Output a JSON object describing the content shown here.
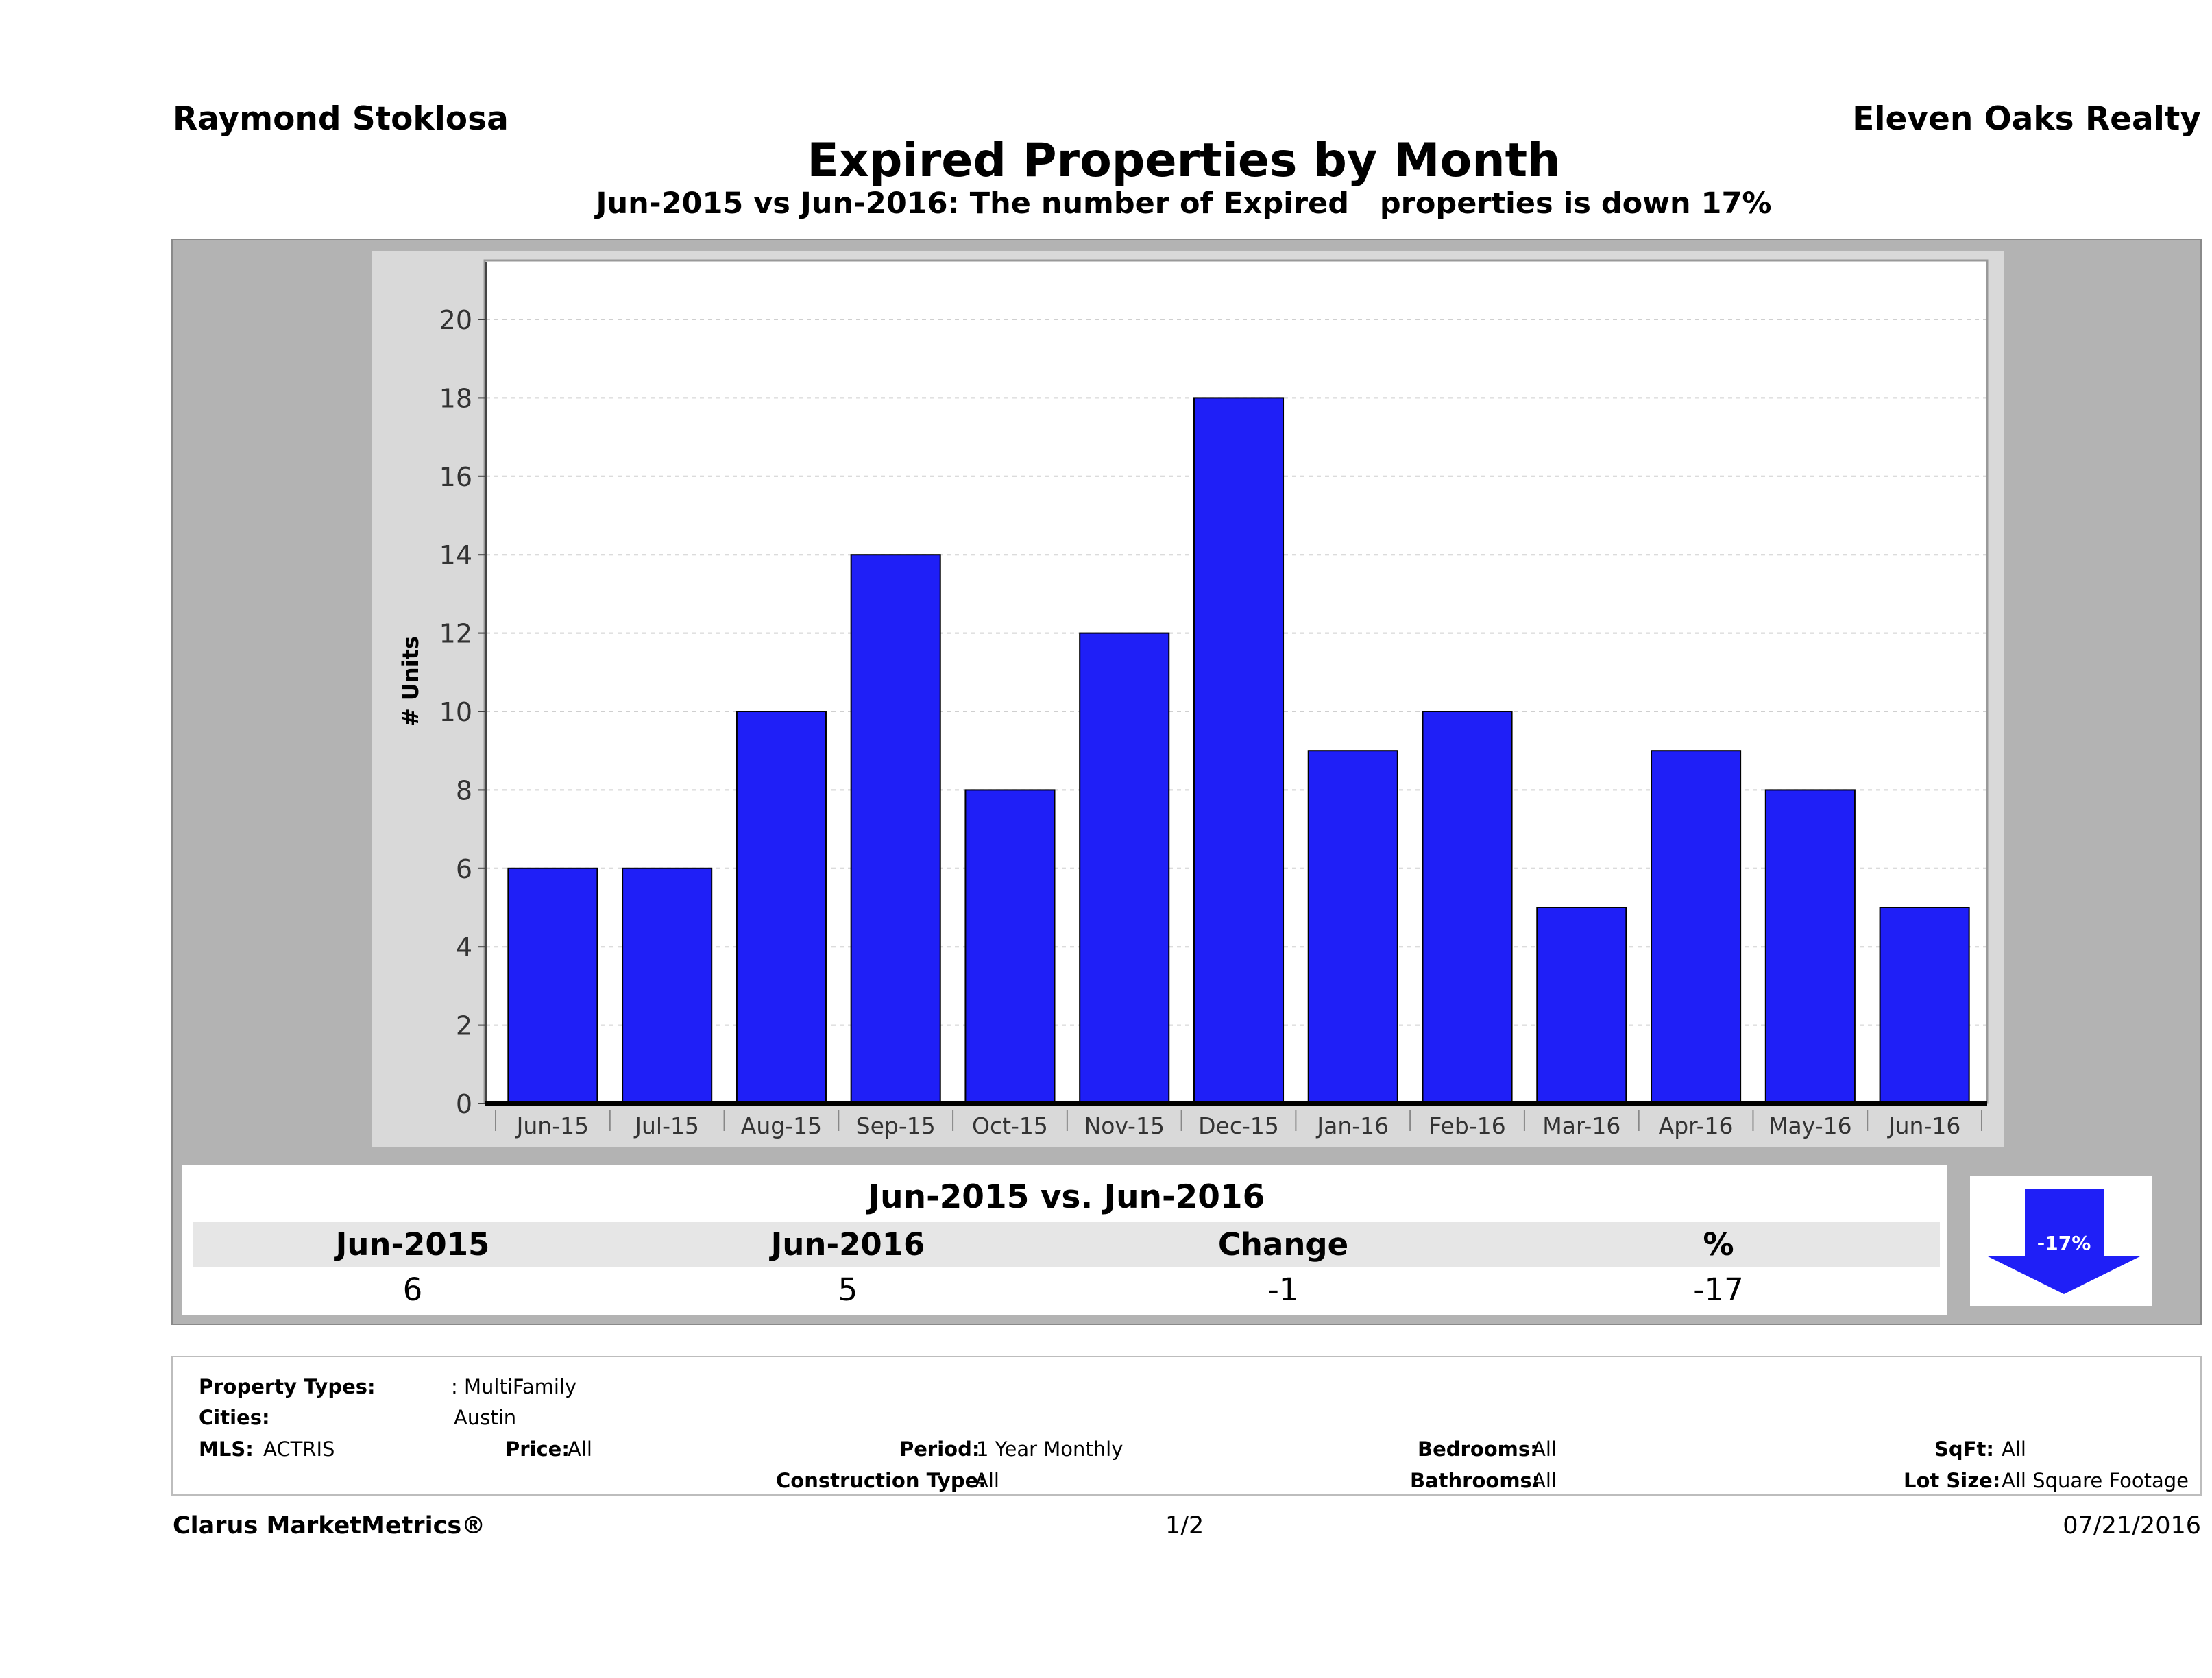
{
  "header": {
    "agent": "Raymond Stoklosa",
    "brokerage": "Eleven Oaks Realty",
    "title": "Expired Properties by Month",
    "subtitle": "Jun-2015 vs Jun-2016: The number of Expired   properties is down 17%"
  },
  "chart_data": {
    "type": "bar",
    "categories": [
      "Jun-15",
      "Jul-15",
      "Aug-15",
      "Sep-15",
      "Oct-15",
      "Nov-15",
      "Dec-15",
      "Jan-16",
      "Feb-16",
      "Mar-16",
      "Apr-16",
      "May-16",
      "Jun-16"
    ],
    "values": [
      6,
      6,
      10,
      14,
      8,
      12,
      18,
      9,
      10,
      5,
      9,
      8,
      5
    ],
    "ylabel": "# Units",
    "xlabel": "",
    "ylim": [
      0,
      21.5
    ],
    "yticks": [
      0,
      2,
      4,
      6,
      8,
      10,
      12,
      14,
      16,
      18,
      20
    ],
    "bar_color": "#1f1ff7",
    "grid": true,
    "legend": "none"
  },
  "summary": {
    "title": "Jun-2015 vs. Jun-2016",
    "headers": [
      "Jun-2015",
      "Jun-2016",
      "Change",
      "%"
    ],
    "values": [
      "6",
      "5",
      "-1",
      "-17"
    ],
    "badge": "-17%",
    "badge_color": "#1f1ff7"
  },
  "filters": {
    "property_types_label": "Property Types:",
    "property_types_value": ": MultiFamily",
    "cities_label": "Cities:",
    "cities_value": "Austin",
    "mls_label": "MLS:",
    "mls_value": "ACTRIS",
    "price_label": "Price:",
    "price_value": "All",
    "period_label": "Period:",
    "period_value": "1 Year Monthly",
    "construction_label": "Construction Type:",
    "construction_value": "All",
    "bedrooms_label": "Bedrooms:",
    "bedrooms_value": "All",
    "bathrooms_label": "Bathrooms:",
    "bathrooms_value": "All",
    "sqft_label": "SqFt:",
    "sqft_value": "All",
    "lotsize_label": "Lot Size:",
    "lotsize_value": "All Square Footage"
  },
  "footer": {
    "brand": "Clarus MarketMetrics®",
    "page": "1/2",
    "date": "07/21/2016"
  }
}
